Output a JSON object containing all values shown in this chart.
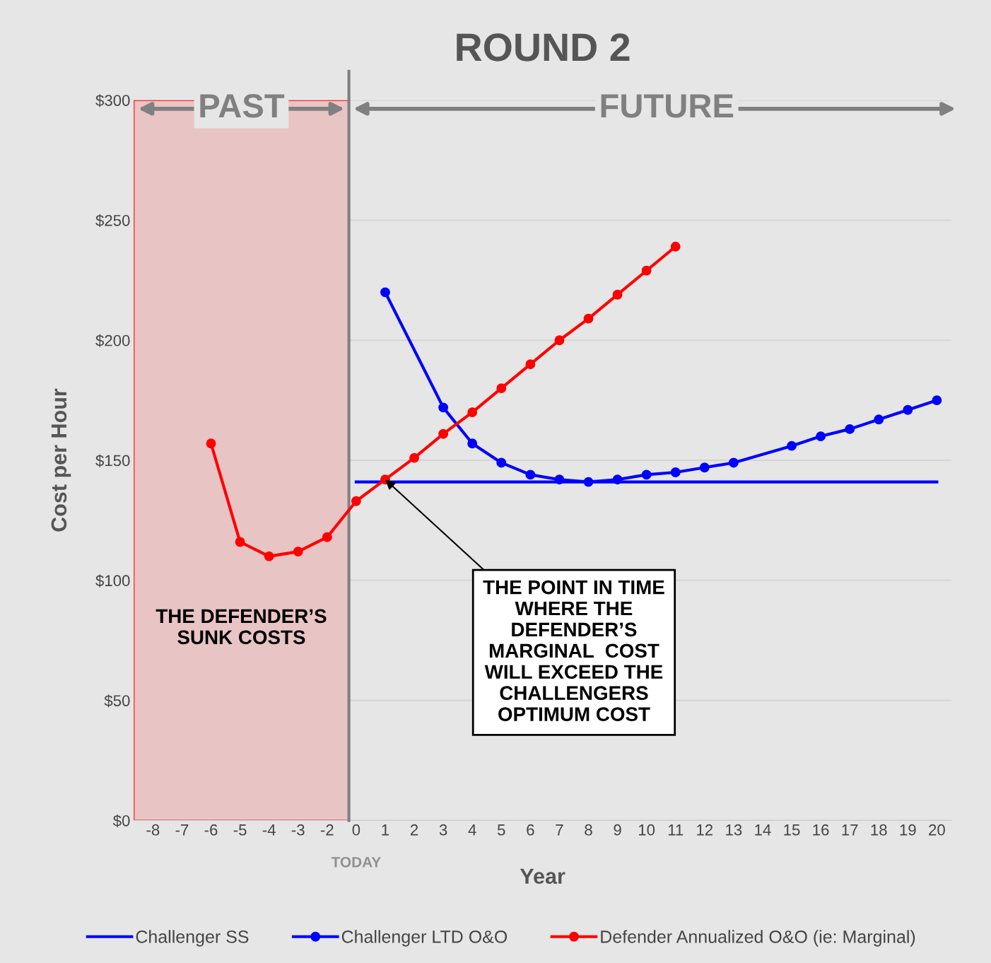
{
  "chart_data": {
    "type": "line",
    "title": "ROUND 2",
    "xlabel": "Year",
    "ylabel": "Cost per Hour",
    "categories": [
      "-8",
      "-7",
      "-6",
      "-5",
      "-4",
      "-3",
      "-2",
      "0",
      "1",
      "2",
      "3",
      "4",
      "5",
      "6",
      "7",
      "8",
      "9",
      "10",
      "11",
      "12",
      "13",
      "14",
      "15",
      "16",
      "17",
      "18",
      "19",
      "20"
    ],
    "series": [
      {
        "name": "Challenger SS",
        "color": "#0000ff",
        "marker": "none",
        "x": [
          "0",
          "20"
        ],
        "values": [
          141,
          141
        ]
      },
      {
        "name": "Challenger LTD O&O",
        "color": "#0000ff",
        "marker": "circle",
        "x": [
          "1",
          "3",
          "4",
          "5",
          "6",
          "7",
          "8",
          "9",
          "10",
          "11",
          "12",
          "13",
          "15",
          "16",
          "17",
          "18",
          "19",
          "20"
        ],
        "values": [
          220,
          172,
          157,
          149,
          144,
          142,
          141,
          142,
          144,
          145,
          147,
          149,
          156,
          160,
          163,
          167,
          171,
          175
        ]
      },
      {
        "name": "Defender Annualized O&O (ie: Marginal)",
        "color": "#ff0000",
        "marker": "circle",
        "x": [
          "-6",
          "-5",
          "-4",
          "-3",
          "-2",
          "0",
          "1",
          "2",
          "3",
          "4",
          "5",
          "6",
          "7",
          "8",
          "9",
          "10",
          "11"
        ],
        "values": [
          157,
          116,
          110,
          112,
          118,
          133,
          142,
          151,
          161,
          170,
          180,
          190,
          200,
          209,
          219,
          229,
          239
        ]
      }
    ],
    "ylim": [
      0,
      300
    ],
    "yticks": [
      {
        "value": 0,
        "label": "$0"
      },
      {
        "value": 50,
        "label": "$50"
      },
      {
        "value": 100,
        "label": "$100"
      },
      {
        "value": 150,
        "label": "$150"
      },
      {
        "value": 200,
        "label": "$200"
      },
      {
        "value": 250,
        "label": "$250"
      },
      {
        "value": 300,
        "label": "$300"
      }
    ],
    "grid": "y",
    "legend": "bottom",
    "ref_lines": [
      {
        "axis": "x",
        "value": "0",
        "label": "TODAY",
        "color": "#808080"
      }
    ],
    "bands": [
      {
        "axis": "x",
        "from": "-8",
        "to": "0",
        "label": "THE DEFENDER’S\nSUNK COSTS",
        "color": "#e8c4c4"
      }
    ],
    "annotations": [
      "PAST",
      "FUTURE",
      {
        "text": "THE POINT IN TIME\nWHERE THE\nDEFENDER’S\nMARGINAL  COST\nWILL EXCEED THE\nCHALLENGERS\nOPTIMUM COST",
        "x": "1",
        "y": 142
      }
    ]
  }
}
